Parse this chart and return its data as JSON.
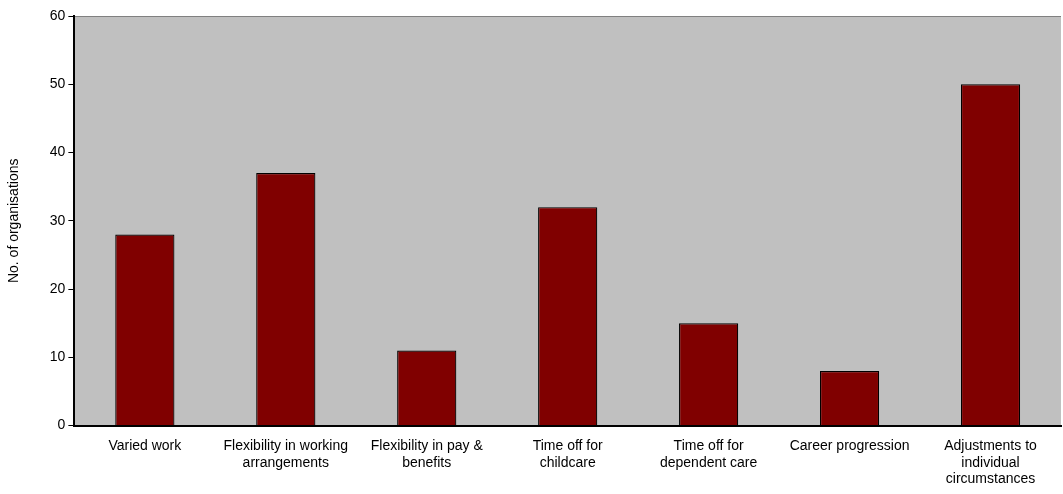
{
  "chart_data": {
    "type": "bar",
    "ylabel": "No. of organisations",
    "categories": [
      "Varied work",
      "Flexibility in working arrangements",
      "Flexibility in pay & benefits",
      "Time off for childcare",
      "Time off for dependent care",
      "Career progression",
      "Adjustments to individual circumstances"
    ],
    "values": [
      28,
      37,
      11,
      32,
      15,
      8,
      50
    ],
    "color": "#800000",
    "ylim": [
      0,
      60
    ],
    "yticks": [
      0,
      10,
      20,
      30,
      40,
      50,
      60
    ],
    "grid": false,
    "legend": false
  }
}
